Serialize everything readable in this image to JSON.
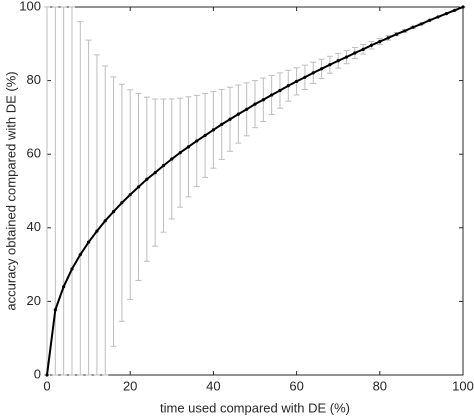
{
  "chart_data": {
    "type": "errorbar",
    "xlabel": "time used compared with DE (%)",
    "ylabel": "accuracy obtained compared with DE (%)",
    "x": [
      0,
      2,
      4,
      6,
      8,
      10,
      12,
      14,
      16,
      18,
      20,
      22,
      24,
      26,
      28,
      30,
      32,
      34,
      36,
      38,
      40,
      42,
      44,
      46,
      48,
      50,
      52,
      54,
      56,
      58,
      60,
      62,
      64,
      66,
      68,
      70,
      72,
      74,
      76,
      78,
      80,
      82,
      84,
      86,
      88,
      90,
      92,
      94,
      96,
      98,
      100
    ],
    "series": [
      {
        "color": "#000000",
        "error_color": "#bdbdbd",
        "values": [
          0,
          17.7,
          24.0,
          28.8,
          32.7,
          36.1,
          39.1,
          41.9,
          44.4,
          46.8,
          49.0,
          51.1,
          53.2,
          55.0,
          56.9,
          58.7,
          60.4,
          62.0,
          63.6,
          65.1,
          66.6,
          68.1,
          69.5,
          70.9,
          72.2,
          73.6,
          74.8,
          76.1,
          77.3,
          78.6,
          79.8,
          80.9,
          82.1,
          83.2,
          84.3,
          85.4,
          86.4,
          87.5,
          88.5,
          89.6,
          90.6,
          91.6,
          92.6,
          93.5,
          94.5,
          95.4,
          96.4,
          97.3,
          98.2,
          99.1,
          100
        ],
        "upper": [
          100,
          100,
          100,
          100,
          96,
          91,
          87,
          84,
          81,
          79,
          77.5,
          76.5,
          75.5,
          75,
          75,
          75,
          75.2,
          75.6,
          76,
          76.5,
          77,
          77.6,
          78.2,
          78.8,
          79.4,
          80,
          80.7,
          81.4,
          82.1,
          82.8,
          83.5,
          84.2,
          85,
          85.8,
          86.6,
          87.4,
          88.2,
          89,
          89.8,
          90.6,
          91.4,
          92.2,
          93,
          93.8,
          94.7,
          95.5,
          96.4,
          97.3,
          98.2,
          99.1,
          100
        ],
        "lower": [
          0,
          0,
          0,
          0,
          0,
          0,
          0,
          0,
          7.8,
          14.6,
          20.5,
          25.7,
          30.9,
          35,
          38.8,
          42.4,
          45.6,
          48.4,
          51.2,
          53.7,
          56.2,
          58.6,
          60.8,
          63,
          65,
          67.2,
          68.9,
          70.8,
          72.5,
          74.4,
          76.1,
          77.6,
          79.2,
          80.6,
          82,
          83.4,
          84.6,
          86,
          87.2,
          88.6,
          89.8,
          91,
          92.2,
          93.2,
          94.3,
          95.3,
          96.4,
          97.3,
          98.2,
          99.1,
          100
        ]
      }
    ],
    "xlim": [
      0,
      100
    ],
    "xticks": [
      0,
      20,
      40,
      60,
      80,
      100
    ],
    "ylim": [
      0,
      100
    ],
    "yticks": [
      0,
      20,
      40,
      60,
      80,
      100
    ]
  }
}
